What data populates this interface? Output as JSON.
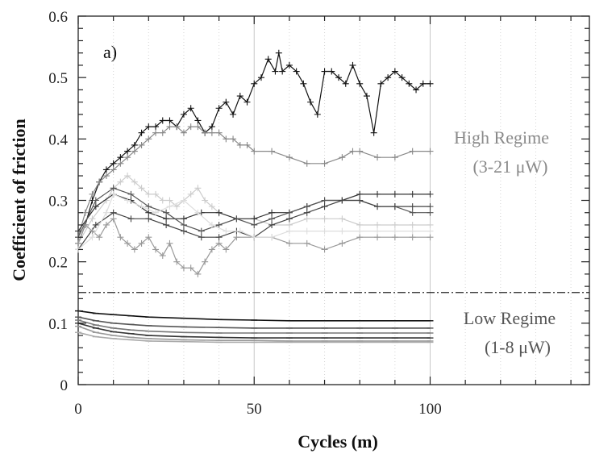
{
  "chart_data": {
    "type": "line",
    "title": "",
    "panel_label": "a)",
    "xlabel": "Cycles (m)",
    "ylabel": "Coefficient of friction",
    "xlim": [
      0,
      145
    ],
    "ylim": [
      0,
      0.6
    ],
    "x_ticks": [
      0,
      50,
      100
    ],
    "y_ticks": [
      0,
      0.1,
      0.2,
      0.3,
      0.4,
      0.5,
      0.6
    ],
    "x_tick_labels": [
      "0",
      "50",
      "100"
    ],
    "y_tick_labels": [
      "0",
      "0.1",
      "0.2",
      "0.3",
      "0.4",
      "0.5",
      "0.6"
    ],
    "grid": "vertical dotted",
    "threshold_line": {
      "y": 0.15,
      "style": "dash-dot"
    },
    "annotations": [
      {
        "id": "high-regime",
        "lines": [
          "High Regime",
          "(3-21 μW)"
        ],
        "color": "#8a8a8a"
      },
      {
        "id": "low-regime",
        "lines": [
          "Low Regime",
          "(1-8 μW)"
        ],
        "color": "#555555"
      }
    ],
    "series": [
      {
        "group": "high",
        "color": "#111111",
        "x": [
          0,
          2,
          4,
          6,
          8,
          10,
          12,
          14,
          16,
          18,
          20,
          22,
          24,
          26,
          28,
          30,
          32,
          34,
          36,
          38,
          40,
          42,
          44,
          46,
          48,
          50,
          52,
          54,
          56,
          57,
          58,
          60,
          62,
          64,
          66,
          68,
          70,
          72,
          74,
          76,
          78,
          80,
          82,
          84,
          86,
          88,
          90,
          92,
          94,
          96,
          98,
          100
        ],
        "y": [
          0.23,
          0.26,
          0.3,
          0.33,
          0.35,
          0.36,
          0.37,
          0.38,
          0.39,
          0.41,
          0.42,
          0.42,
          0.43,
          0.43,
          0.42,
          0.44,
          0.45,
          0.43,
          0.41,
          0.42,
          0.45,
          0.46,
          0.44,
          0.47,
          0.46,
          0.49,
          0.5,
          0.53,
          0.51,
          0.54,
          0.51,
          0.52,
          0.51,
          0.49,
          0.46,
          0.44,
          0.51,
          0.51,
          0.5,
          0.49,
          0.52,
          0.49,
          0.47,
          0.41,
          0.49,
          0.5,
          0.51,
          0.5,
          0.49,
          0.48,
          0.49,
          0.49
        ]
      },
      {
        "group": "high",
        "color": "#888888",
        "x": [
          0,
          2,
          4,
          6,
          8,
          10,
          12,
          14,
          16,
          18,
          20,
          22,
          24,
          26,
          28,
          30,
          32,
          34,
          36,
          38,
          40,
          42,
          44,
          46,
          48,
          50,
          55,
          60,
          65,
          70,
          75,
          78,
          80,
          85,
          90,
          95,
          100
        ],
        "y": [
          0.24,
          0.28,
          0.31,
          0.33,
          0.34,
          0.35,
          0.36,
          0.37,
          0.38,
          0.39,
          0.4,
          0.41,
          0.41,
          0.42,
          0.42,
          0.41,
          0.42,
          0.42,
          0.41,
          0.41,
          0.41,
          0.4,
          0.4,
          0.39,
          0.39,
          0.38,
          0.38,
          0.37,
          0.36,
          0.36,
          0.37,
          0.38,
          0.38,
          0.37,
          0.37,
          0.38,
          0.38
        ]
      },
      {
        "group": "high",
        "color": "#cccccc",
        "x": [
          0,
          4,
          8,
          10,
          12,
          14,
          16,
          18,
          20,
          22,
          24,
          26,
          28,
          30,
          32,
          34,
          36,
          38,
          40,
          45,
          50,
          55,
          60,
          65,
          70,
          75,
          80,
          85,
          90,
          95,
          100
        ],
        "y": [
          0.23,
          0.27,
          0.3,
          0.32,
          0.33,
          0.34,
          0.33,
          0.32,
          0.31,
          0.31,
          0.3,
          0.3,
          0.29,
          0.3,
          0.31,
          0.32,
          0.3,
          0.29,
          0.28,
          0.27,
          0.27,
          0.26,
          0.26,
          0.27,
          0.27,
          0.27,
          0.26,
          0.26,
          0.26,
          0.26,
          0.26
        ]
      },
      {
        "group": "high",
        "color": "#333333",
        "x": [
          0,
          5,
          10,
          15,
          20,
          25,
          30,
          35,
          40,
          45,
          50,
          55,
          60,
          65,
          70,
          75,
          80,
          85,
          90,
          95,
          100
        ],
        "y": [
          0.25,
          0.29,
          0.31,
          0.3,
          0.28,
          0.27,
          0.27,
          0.28,
          0.28,
          0.27,
          0.27,
          0.28,
          0.28,
          0.29,
          0.3,
          0.3,
          0.31,
          0.31,
          0.31,
          0.31,
          0.31
        ]
      },
      {
        "group": "high",
        "color": "#555555",
        "x": [
          0,
          5,
          10,
          15,
          20,
          25,
          30,
          35,
          40,
          45,
          50,
          55,
          60,
          65,
          70,
          75,
          80,
          85,
          90,
          95,
          100
        ],
        "y": [
          0.24,
          0.3,
          0.32,
          0.31,
          0.29,
          0.28,
          0.26,
          0.25,
          0.26,
          0.27,
          0.26,
          0.27,
          0.28,
          0.29,
          0.3,
          0.3,
          0.3,
          0.29,
          0.29,
          0.28,
          0.28
        ]
      },
      {
        "group": "high",
        "color": "#444444",
        "x": [
          0,
          5,
          10,
          15,
          20,
          25,
          30,
          35,
          40,
          45,
          50,
          55,
          60,
          65,
          70,
          75,
          80,
          85,
          90,
          95,
          100
        ],
        "y": [
          0.22,
          0.26,
          0.28,
          0.27,
          0.27,
          0.26,
          0.25,
          0.24,
          0.24,
          0.25,
          0.24,
          0.26,
          0.27,
          0.28,
          0.29,
          0.3,
          0.3,
          0.29,
          0.29,
          0.29,
          0.29
        ]
      },
      {
        "group": "high",
        "color": "#999999",
        "x": [
          0,
          2,
          4,
          6,
          8,
          10,
          12,
          14,
          16,
          18,
          20,
          22,
          24,
          26,
          28,
          30,
          32,
          34,
          36,
          38,
          40,
          42,
          45,
          50,
          55,
          60,
          65,
          70,
          75,
          80,
          85,
          90,
          95,
          100
        ],
        "y": [
          0.23,
          0.26,
          0.25,
          0.24,
          0.26,
          0.27,
          0.24,
          0.23,
          0.22,
          0.23,
          0.24,
          0.22,
          0.21,
          0.23,
          0.2,
          0.19,
          0.19,
          0.18,
          0.2,
          0.22,
          0.23,
          0.22,
          0.24,
          0.24,
          0.24,
          0.23,
          0.23,
          0.22,
          0.23,
          0.24,
          0.24,
          0.24,
          0.24,
          0.24
        ]
      },
      {
        "group": "high",
        "color": "#dddddd",
        "x": [
          0,
          4,
          8,
          10,
          14,
          18,
          22,
          26,
          30,
          34,
          38,
          42,
          46,
          50,
          55,
          60,
          65,
          70,
          75,
          80,
          85,
          90,
          95,
          100
        ],
        "y": [
          0.22,
          0.24,
          0.28,
          0.31,
          0.3,
          0.29,
          0.28,
          0.29,
          0.3,
          0.28,
          0.26,
          0.25,
          0.25,
          0.24,
          0.24,
          0.25,
          0.25,
          0.25,
          0.25,
          0.25,
          0.25,
          0.25,
          0.25,
          0.25
        ]
      },
      {
        "group": "low",
        "color": "#111111",
        "x": [
          0,
          5,
          10,
          15,
          20,
          30,
          40,
          50,
          60,
          70,
          80,
          90,
          100
        ],
        "y": [
          0.12,
          0.116,
          0.114,
          0.112,
          0.11,
          0.108,
          0.106,
          0.105,
          0.104,
          0.104,
          0.104,
          0.104,
          0.104
        ]
      },
      {
        "group": "low",
        "color": "#555555",
        "x": [
          0,
          5,
          10,
          15,
          20,
          30,
          40,
          50,
          60,
          70,
          80,
          90,
          100
        ],
        "y": [
          0.11,
          0.104,
          0.1,
          0.098,
          0.096,
          0.094,
          0.093,
          0.092,
          0.092,
          0.092,
          0.092,
          0.092,
          0.092
        ]
      },
      {
        "group": "low",
        "color": "#777777",
        "x": [
          0,
          5,
          10,
          15,
          20,
          30,
          40,
          50,
          60,
          70,
          80,
          90,
          100
        ],
        "y": [
          0.105,
          0.097,
          0.092,
          0.089,
          0.087,
          0.085,
          0.084,
          0.084,
          0.084,
          0.084,
          0.084,
          0.084,
          0.084
        ]
      },
      {
        "group": "low",
        "color": "#333333",
        "x": [
          0,
          5,
          10,
          15,
          20,
          30,
          40,
          50,
          60,
          70,
          80,
          90,
          100
        ],
        "y": [
          0.1,
          0.092,
          0.086,
          0.083,
          0.08,
          0.078,
          0.077,
          0.076,
          0.076,
          0.076,
          0.076,
          0.076,
          0.076
        ]
      },
      {
        "group": "low",
        "color": "#999999",
        "x": [
          0,
          5,
          10,
          15,
          20,
          30,
          40,
          50,
          60,
          70,
          80,
          90,
          100
        ],
        "y": [
          0.095,
          0.085,
          0.08,
          0.077,
          0.075,
          0.073,
          0.072,
          0.072,
          0.071,
          0.071,
          0.071,
          0.071,
          0.071
        ]
      },
      {
        "group": "low",
        "color": "#aaaaaa",
        "x": [
          0,
          5,
          10,
          15,
          20,
          30,
          40,
          50,
          60,
          70,
          80,
          90,
          100
        ],
        "y": [
          0.085,
          0.078,
          0.075,
          0.073,
          0.071,
          0.07,
          0.069,
          0.069,
          0.069,
          0.069,
          0.069,
          0.069,
          0.069
        ]
      }
    ]
  }
}
